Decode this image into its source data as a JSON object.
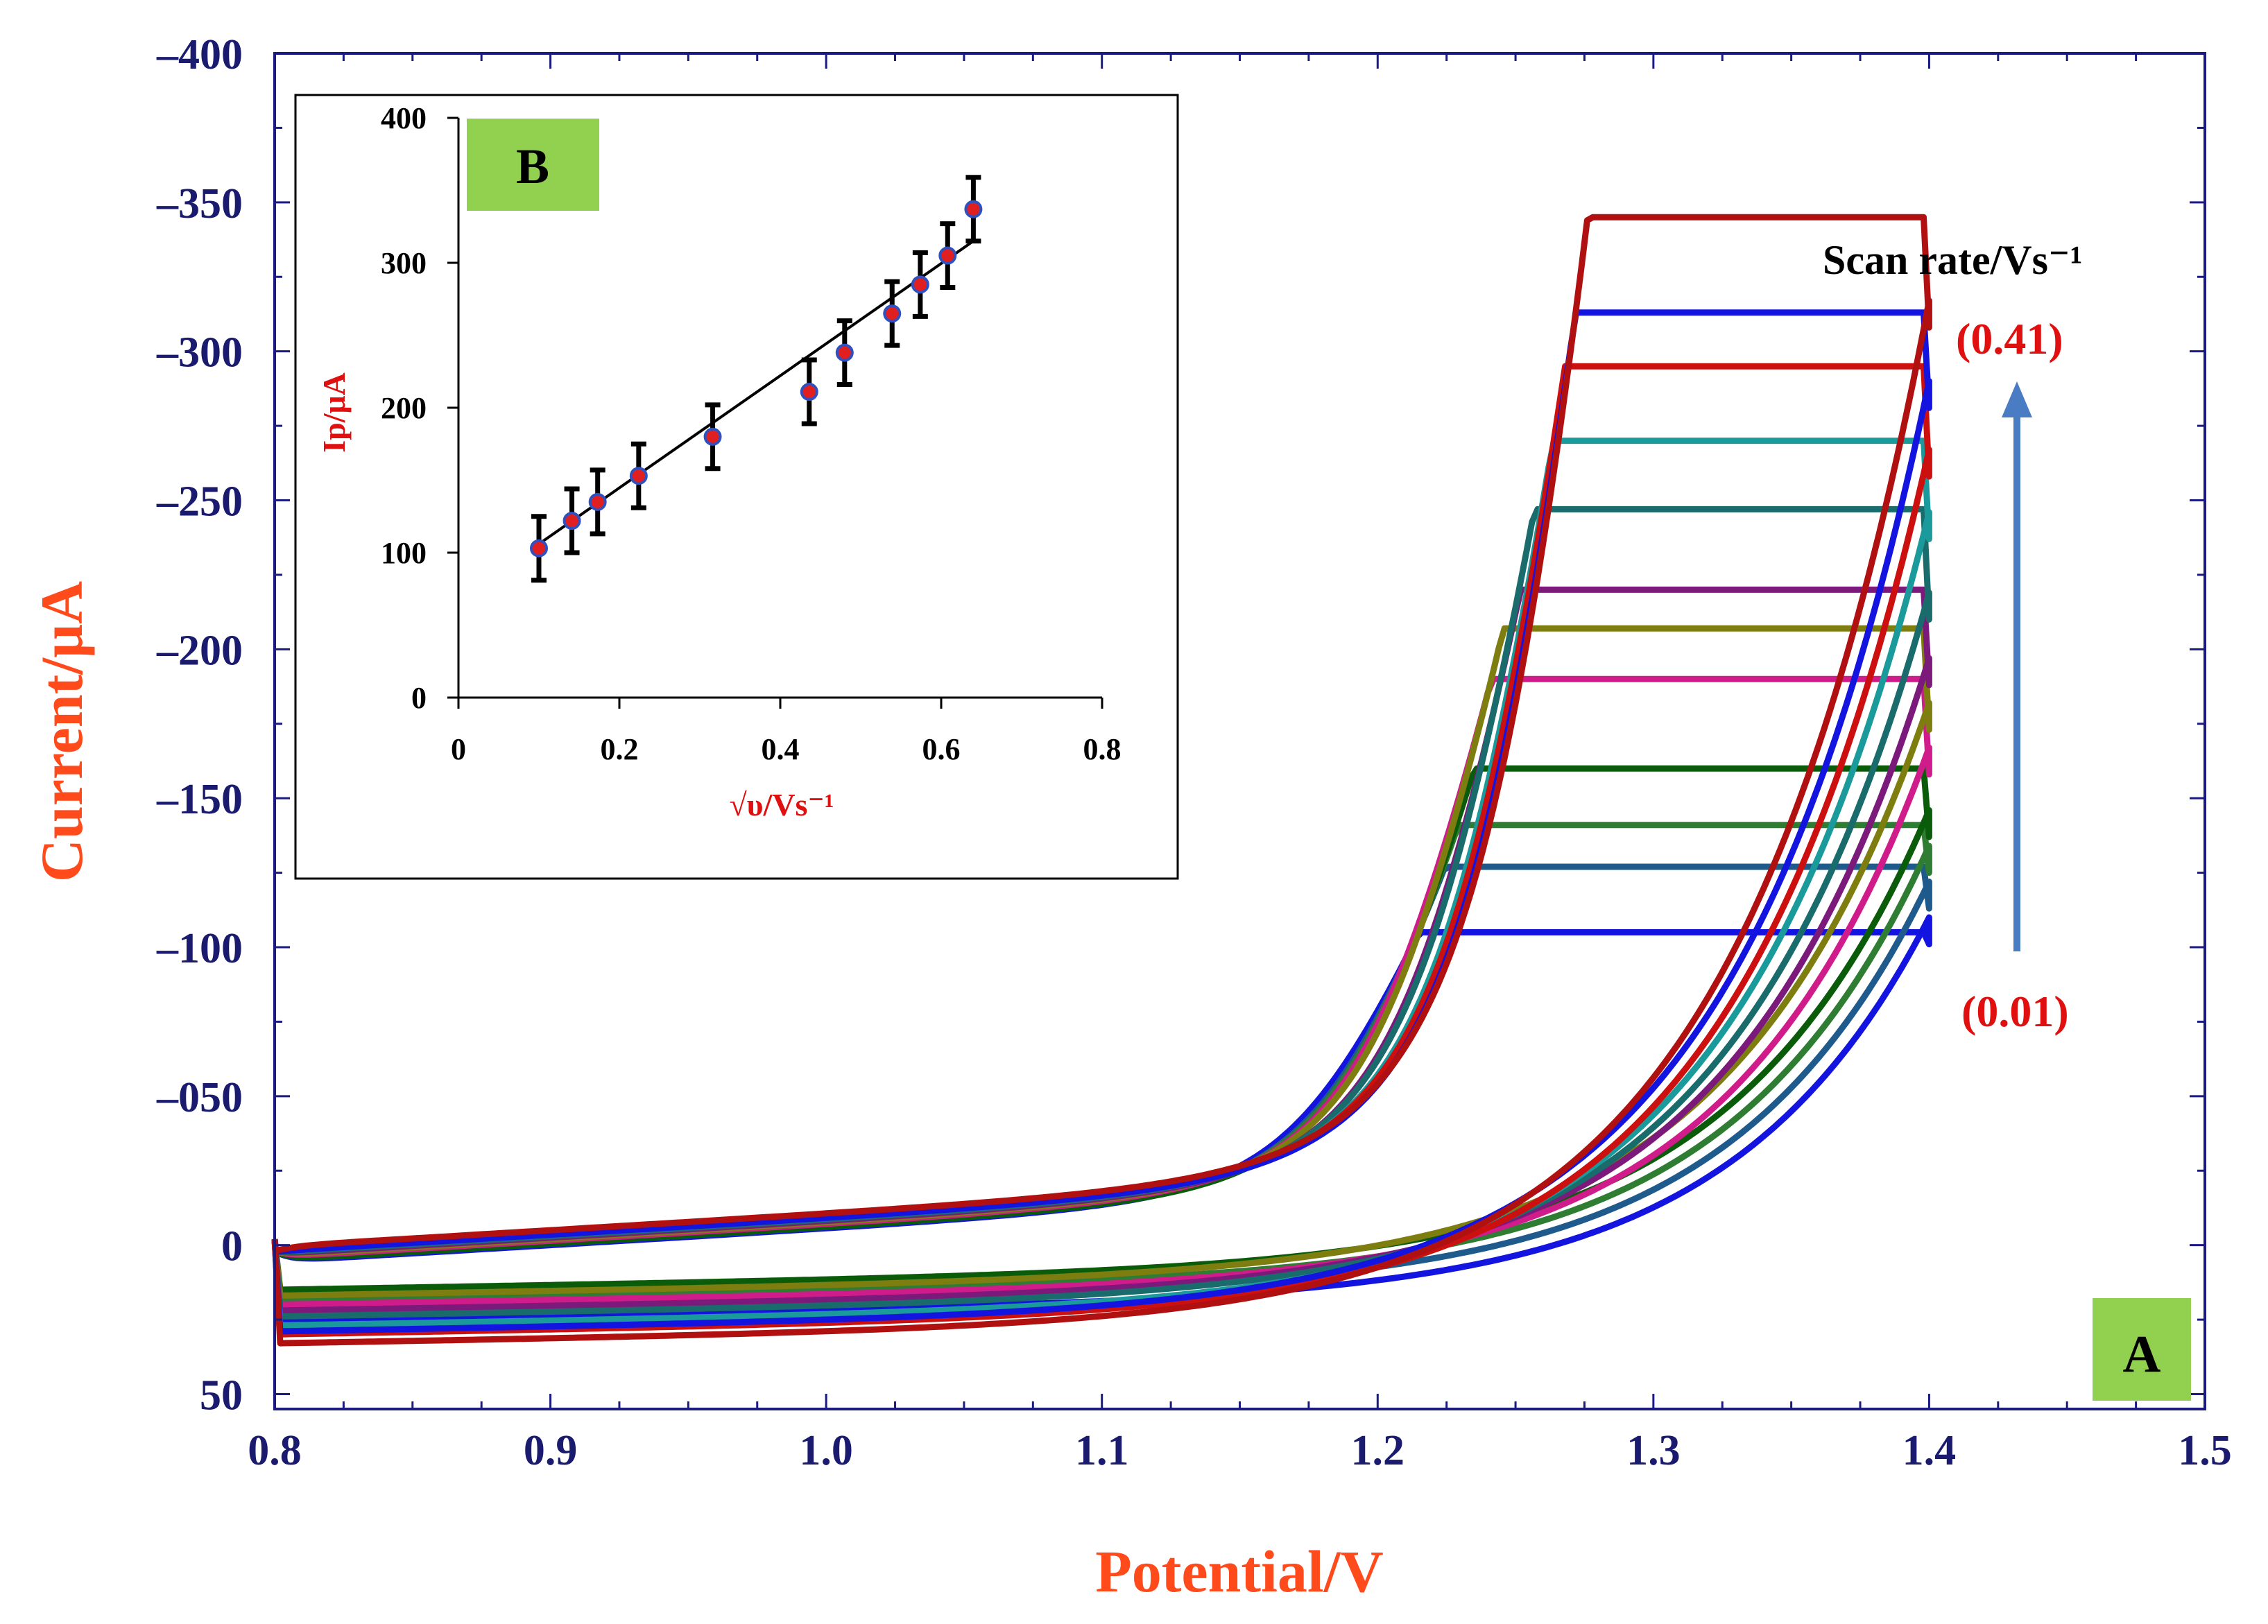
{
  "colors": {
    "axis": "#1a1a80",
    "tick_label": "#1a1a6e",
    "axis_title": "#ff4a1c",
    "red_label": "#e01010",
    "green_box": "#92d050",
    "arrow": "#4a7cc4",
    "inset_point": "#e02020",
    "inset_point_edge": "#3050c0"
  },
  "chart_data": [
    {
      "id": "A",
      "type": "line",
      "panel_label": "A",
      "xlabel": "Potential/V",
      "ylabel": "Current/μA",
      "xlim": [
        0.8,
        1.5
      ],
      "ylim_top": -400,
      "ylim_bottom": 55,
      "x_ticks": [
        "0.8",
        "0.9",
        "1.0",
        "1.1",
        "1.2",
        "1.3",
        "1.4",
        "1.5"
      ],
      "y_ticks": [
        {
          "value": -400,
          "label": "–400"
        },
        {
          "value": -350,
          "label": "–350"
        },
        {
          "value": -300,
          "label": "–300"
        },
        {
          "value": -250,
          "label": "–250"
        },
        {
          "value": -200,
          "label": "–200"
        },
        {
          "value": -150,
          "label": "–150"
        },
        {
          "value": -100,
          "label": "–100"
        },
        {
          "value": -50,
          "label": "–050"
        },
        {
          "value": 0,
          "label": "0"
        },
        {
          "value": 50,
          "label": "50"
        }
      ],
      "legend_title": "Scan rate/Vs⁻¹",
      "scan_rate_high": "(0.41)",
      "scan_rate_low": "(0.01)",
      "series": [
        {
          "color": "#1414e0",
          "peak_potential": 1.26,
          "peak_current": -95,
          "switch_current": -101,
          "ox_baseline": -5,
          "red_baseline": 25
        },
        {
          "color": "#1f5a8c",
          "peak_potential": 1.27,
          "peak_current": -117,
          "switch_current": -113,
          "ox_baseline": -6,
          "red_baseline": 21
        },
        {
          "color": "#2e7d32",
          "peak_potential": 1.275,
          "peak_current": -131,
          "switch_current": -125,
          "ox_baseline": -7,
          "red_baseline": 18
        },
        {
          "color": "#0a5c0a",
          "peak_potential": 1.28,
          "peak_current": -150,
          "switch_current": -137,
          "ox_baseline": -6,
          "red_baseline": 15
        },
        {
          "color": "#d01c8b",
          "peak_potential": 1.285,
          "peak_current": -180,
          "switch_current": -158,
          "ox_baseline": -8,
          "red_baseline": 20
        },
        {
          "color": "#7d7d10",
          "peak_potential": 1.29,
          "peak_current": -197,
          "switch_current": -173,
          "ox_baseline": -9,
          "red_baseline": 17
        },
        {
          "color": "#7b1a7b",
          "peak_potential": 1.3,
          "peak_current": -210,
          "switch_current": -188,
          "ox_baseline": -10,
          "red_baseline": 22
        },
        {
          "color": "#1a6b6b",
          "peak_potential": 1.305,
          "peak_current": -237,
          "switch_current": -210,
          "ox_baseline": -11,
          "red_baseline": 24
        },
        {
          "color": "#1a9a9a",
          "peak_potential": 1.315,
          "peak_current": -260,
          "switch_current": -237,
          "ox_baseline": -12,
          "red_baseline": 27
        },
        {
          "color": "#cc1010",
          "peak_potential": 1.32,
          "peak_current": -285,
          "switch_current": -258,
          "ox_baseline": -13,
          "red_baseline": 30
        },
        {
          "color": "#1414e0",
          "peak_potential": 1.325,
          "peak_current": -303,
          "switch_current": -281,
          "ox_baseline": -12,
          "red_baseline": 29
        },
        {
          "color": "#b01010",
          "peak_potential": 1.33,
          "peak_current": -335,
          "switch_current": -308,
          "ox_baseline": -15,
          "red_baseline": 33
        }
      ]
    },
    {
      "id": "B",
      "type": "scatter",
      "panel_label": "B",
      "xlabel": "√υ/Vs⁻¹",
      "ylabel": "Ip/μA",
      "xlim": [
        0,
        0.8
      ],
      "ylim": [
        0,
        400
      ],
      "x_ticks": [
        "0",
        "0.2",
        "0.4",
        "0.6",
        "0.8"
      ],
      "y_ticks": [
        "0",
        "100",
        "200",
        "300",
        "400"
      ],
      "x": [
        0.1,
        0.141,
        0.173,
        0.224,
        0.316,
        0.436,
        0.48,
        0.539,
        0.574,
        0.608,
        0.64
      ],
      "y": [
        103,
        122,
        135,
        153,
        180,
        211,
        238,
        265,
        285,
        305,
        337
      ],
      "error": [
        22,
        22,
        22,
        22,
        22,
        22,
        22,
        22,
        22,
        22,
        22
      ],
      "fit": {
        "x": [
          0.1,
          0.64
        ],
        "y": [
          106,
          315
        ]
      }
    }
  ]
}
